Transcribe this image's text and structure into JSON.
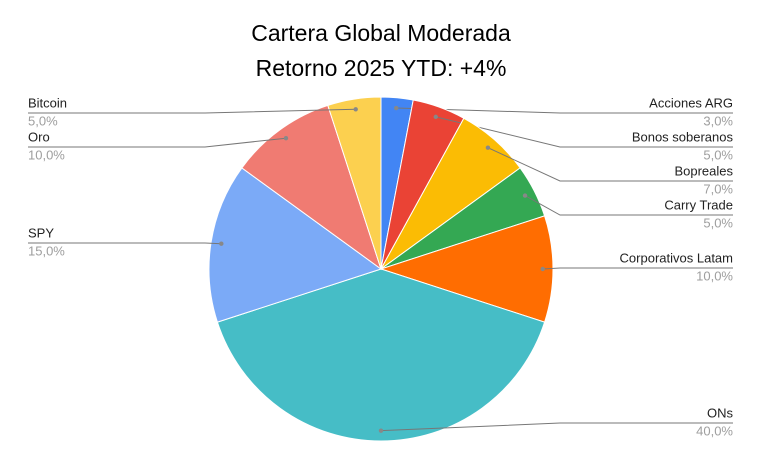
{
  "chart_data": {
    "type": "pie",
    "title": "Cartera Global Moderada",
    "subtitle": "Retorno 2025 YTD: +4%",
    "categories": [
      "Acciones ARG",
      "Bonos soberanos",
      "Bopreales",
      "Carry Trade",
      "Corporativos Latam",
      "ONs",
      "SPY",
      "Oro",
      "Bitcoin"
    ],
    "values": [
      3,
      5,
      7,
      5,
      10,
      40,
      15,
      10,
      5
    ],
    "value_labels": [
      "3,0%",
      "5,0%",
      "7,0%",
      "5,0%",
      "10,0%",
      "40,0%",
      "15,0%",
      "10,0%",
      "5,0%"
    ],
    "colors": [
      "#4285f4",
      "#ea4335",
      "#fbbc04",
      "#34a853",
      "#ff6d01",
      "#46bdc6",
      "#7baaf7",
      "#f07b72",
      "#fcd04f"
    ]
  }
}
